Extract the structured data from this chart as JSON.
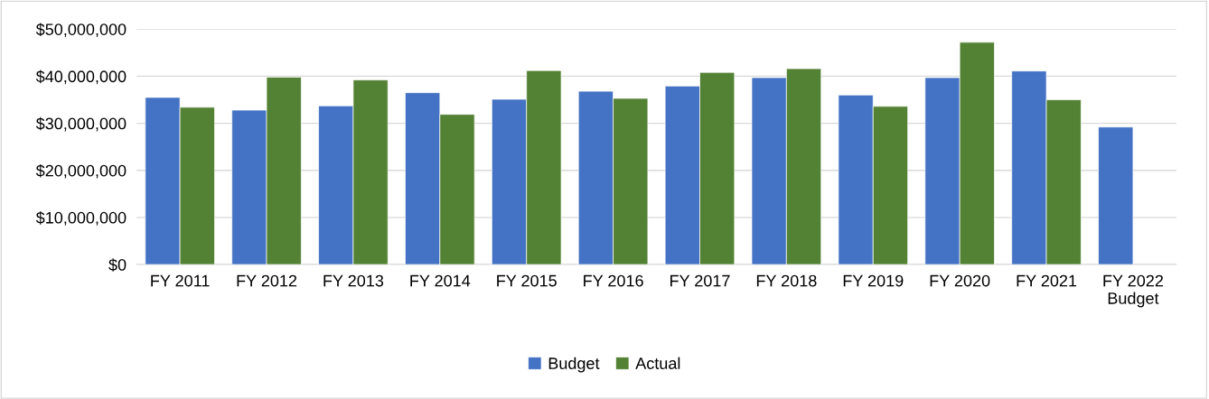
{
  "chart_data": {
    "type": "bar",
    "categories": [
      "FY 2011",
      "FY 2012",
      "FY 2013",
      "FY 2014",
      "FY 2015",
      "FY 2016",
      "FY 2017",
      "FY 2018",
      "FY 2019",
      "FY 2020",
      "FY 2021",
      "FY 2022\nBudget"
    ],
    "series": [
      {
        "name": "Budget",
        "color": "#4472c4",
        "values": [
          35500000,
          32800000,
          33700000,
          36500000,
          35100000,
          36800000,
          37900000,
          39700000,
          36000000,
          39700000,
          41100000,
          29200000
        ]
      },
      {
        "name": "Actual",
        "color": "#548235",
        "values": [
          33400000,
          39800000,
          39200000,
          31900000,
          41200000,
          35300000,
          40800000,
          41600000,
          33600000,
          47200000,
          35000000,
          null
        ]
      }
    ],
    "ylim": [
      0,
      50000000
    ],
    "yticks": [
      {
        "value": 0,
        "label": "$0"
      },
      {
        "value": 10000000,
        "label": "$10,000,000"
      },
      {
        "value": 20000000,
        "label": "$20,000,000"
      },
      {
        "value": 30000000,
        "label": "$30,000,000"
      },
      {
        "value": 40000000,
        "label": "$40,000,000"
      },
      {
        "value": 50000000,
        "label": "$50,000,000"
      }
    ],
    "grid": "y",
    "legend": "bottom"
  }
}
